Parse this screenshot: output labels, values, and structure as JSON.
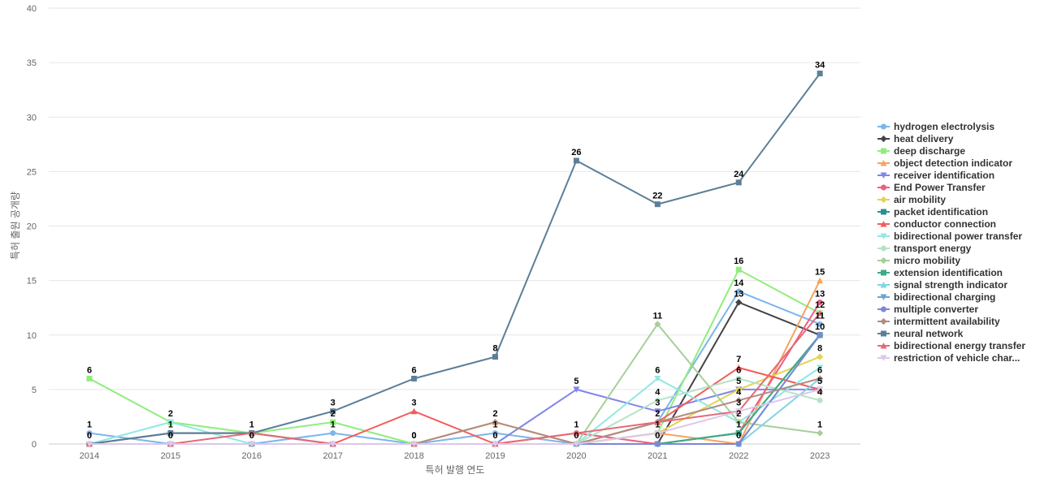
{
  "chart_data": {
    "type": "line",
    "xlabel": "특허 발행 연도",
    "ylabel": "특허 출원 공개량",
    "ylim": [
      0,
      40
    ],
    "yticks": [
      "0",
      "5",
      "10",
      "15",
      "20",
      "25",
      "30",
      "35",
      "40"
    ],
    "categories": [
      "2014",
      "2015",
      "2016",
      "2017",
      "2018",
      "2019",
      "2020",
      "2021",
      "2022",
      "2023"
    ],
    "grid": true,
    "legend": "right",
    "series": [
      {
        "name": "hydrogen electrolysis",
        "color": "#7cb5ec",
        "marker": "circle",
        "values": [
          1,
          0,
          0,
          1,
          0,
          1,
          0,
          2,
          14,
          11
        ]
      },
      {
        "name": "heat delivery",
        "color": "#434348",
        "marker": "diamond",
        "values": [
          0,
          1,
          1,
          0,
          0,
          0,
          0,
          0,
          13,
          10
        ]
      },
      {
        "name": "deep discharge",
        "color": "#90ed7d",
        "marker": "square",
        "values": [
          6,
          2,
          1,
          2,
          0,
          0,
          0,
          1,
          16,
          12
        ]
      },
      {
        "name": "object detection indicator",
        "color": "#f7a35c",
        "marker": "triangle",
        "values": [
          0,
          0,
          0,
          0,
          0,
          2,
          0,
          1,
          0,
          15
        ]
      },
      {
        "name": "receiver identification",
        "color": "#8085e9",
        "marker": "triangle-down",
        "values": [
          0,
          0,
          0,
          0,
          0,
          0,
          5,
          3,
          5,
          5
        ]
      },
      {
        "name": "End Power Transfer",
        "color": "#f15c80",
        "marker": "circle",
        "values": [
          0,
          0,
          0,
          0,
          0,
          0,
          1,
          0,
          1,
          13
        ]
      },
      {
        "name": "air mobility",
        "color": "#e4d354",
        "marker": "diamond",
        "values": [
          0,
          0,
          0,
          0,
          0,
          0,
          0,
          1,
          5,
          8
        ]
      },
      {
        "name": "packet identification",
        "color": "#2b908f",
        "marker": "square",
        "values": [
          0,
          0,
          0,
          0,
          0,
          0,
          0,
          0,
          1,
          10
        ]
      },
      {
        "name": "conductor connection",
        "color": "#f45b5b",
        "marker": "triangle",
        "values": [
          0,
          0,
          0,
          0,
          3,
          0,
          0,
          2,
          7,
          5
        ]
      },
      {
        "name": "bidirectional power transfer",
        "color": "#91e8e1",
        "marker": "triangle-down",
        "values": [
          0,
          2,
          0,
          0,
          0,
          0,
          0,
          6,
          2,
          7
        ]
      },
      {
        "name": "transport energy",
        "color": "#b5e3c8",
        "marker": "circle",
        "values": [
          0,
          0,
          0,
          0,
          0,
          0,
          0,
          4,
          6,
          4
        ]
      },
      {
        "name": "micro mobility",
        "color": "#a6cf98",
        "marker": "diamond",
        "values": [
          0,
          0,
          0,
          0,
          0,
          0,
          0,
          11,
          2,
          1
        ]
      },
      {
        "name": "extension identification",
        "color": "#3dab86",
        "marker": "square",
        "values": [
          0,
          0,
          0,
          0,
          0,
          0,
          0,
          0,
          1,
          10
        ]
      },
      {
        "name": "signal strength indicator",
        "color": "#80d4e6",
        "marker": "triangle",
        "values": [
          0,
          0,
          0,
          0,
          0,
          0,
          0,
          0,
          0,
          6
        ]
      },
      {
        "name": "bidirectional charging",
        "color": "#6ba3d6",
        "marker": "triangle-down",
        "values": [
          0,
          0,
          0,
          0,
          0,
          0,
          0,
          0,
          0,
          10
        ]
      },
      {
        "name": "multiple converter",
        "color": "#7b87d4",
        "marker": "circle",
        "values": [
          0,
          0,
          0,
          0,
          0,
          0,
          0,
          0,
          0,
          10
        ]
      },
      {
        "name": "intermittent availability",
        "color": "#b08d7f",
        "marker": "diamond",
        "values": [
          0,
          0,
          0,
          0,
          0,
          2,
          0,
          2,
          4,
          6
        ]
      },
      {
        "name": "neural network",
        "color": "#5c7f98",
        "marker": "square",
        "values": [
          0,
          1,
          1,
          3,
          6,
          8,
          26,
          22,
          24,
          34
        ]
      },
      {
        "name": "bidirectional energy transfer",
        "color": "#e56a77",
        "marker": "triangle",
        "values": [
          0,
          0,
          1,
          0,
          0,
          0,
          1,
          2,
          3,
          12
        ]
      },
      {
        "name": "restriction of vehicle char...",
        "color": "#dcc8ea",
        "marker": "triangle-down",
        "values": [
          0,
          0,
          0,
          0,
          0,
          0,
          0,
          1,
          3,
          5
        ]
      }
    ],
    "data_labels": [
      {
        "series": "deep discharge",
        "point": 0
      },
      {
        "series": "hydrogen electrolysis",
        "point": 0
      },
      {
        "series": "heat delivery",
        "point": 0
      },
      {
        "series": "deep discharge",
        "point": 1
      },
      {
        "series": "heat delivery",
        "point": 1
      },
      {
        "series": "hydrogen electrolysis",
        "point": 1
      },
      {
        "series": "heat delivery",
        "point": 2
      },
      {
        "series": "hydrogen electrolysis",
        "point": 2
      },
      {
        "series": "neural network",
        "point": 3
      },
      {
        "series": "deep discharge",
        "point": 3
      },
      {
        "series": "hydrogen electrolysis",
        "point": 3
      },
      {
        "series": "neural network",
        "point": 4
      },
      {
        "series": "conductor connection",
        "point": 4
      },
      {
        "series": "hydrogen electrolysis",
        "point": 4
      },
      {
        "series": "deep discharge",
        "point": 4
      },
      {
        "series": "neural network",
        "point": 5
      },
      {
        "series": "object detection indicator",
        "point": 5
      },
      {
        "series": "hydrogen electrolysis",
        "point": 5
      },
      {
        "series": "heat delivery",
        "point": 5
      },
      {
        "series": "neural network",
        "point": 6
      },
      {
        "series": "receiver identification",
        "point": 6
      },
      {
        "series": "End Power Transfer",
        "point": 6
      },
      {
        "series": "heat delivery",
        "point": 6
      },
      {
        "series": "neural network",
        "point": 7
      },
      {
        "series": "micro mobility",
        "point": 7
      },
      {
        "series": "bidirectional power transfer",
        "point": 7
      },
      {
        "series": "transport energy",
        "point": 7
      },
      {
        "series": "receiver identification",
        "point": 7
      },
      {
        "series": "hydrogen electrolysis",
        "point": 7
      },
      {
        "series": "deep discharge",
        "point": 7
      },
      {
        "series": "heat delivery",
        "point": 7
      },
      {
        "series": "neural network",
        "point": 8
      },
      {
        "series": "deep discharge",
        "point": 8
      },
      {
        "series": "hydrogen electrolysis",
        "point": 8
      },
      {
        "series": "heat delivery",
        "point": 8
      },
      {
        "series": "conductor connection",
        "point": 8
      },
      {
        "series": "transport energy",
        "point": 8
      },
      {
        "series": "air mobility",
        "point": 8
      },
      {
        "series": "intermittent availability",
        "point": 8
      },
      {
        "series": "bidirectional energy transfer",
        "point": 8
      },
      {
        "series": "micro mobility",
        "point": 8
      },
      {
        "series": "packet identification",
        "point": 8
      },
      {
        "series": "object detection indicator",
        "point": 8
      },
      {
        "series": "neural network",
        "point": 9
      },
      {
        "series": "object detection indicator",
        "point": 9
      },
      {
        "series": "End Power Transfer",
        "point": 9
      },
      {
        "series": "deep discharge",
        "point": 9
      },
      {
        "series": "hydrogen electrolysis",
        "point": 9
      },
      {
        "series": "heat delivery",
        "point": 9
      },
      {
        "series": "air mobility",
        "point": 9
      },
      {
        "series": "intermittent availability",
        "point": 9
      },
      {
        "series": "receiver identification",
        "point": 9
      },
      {
        "series": "transport energy",
        "point": 9
      },
      {
        "series": "micro mobility",
        "point": 9
      }
    ]
  }
}
